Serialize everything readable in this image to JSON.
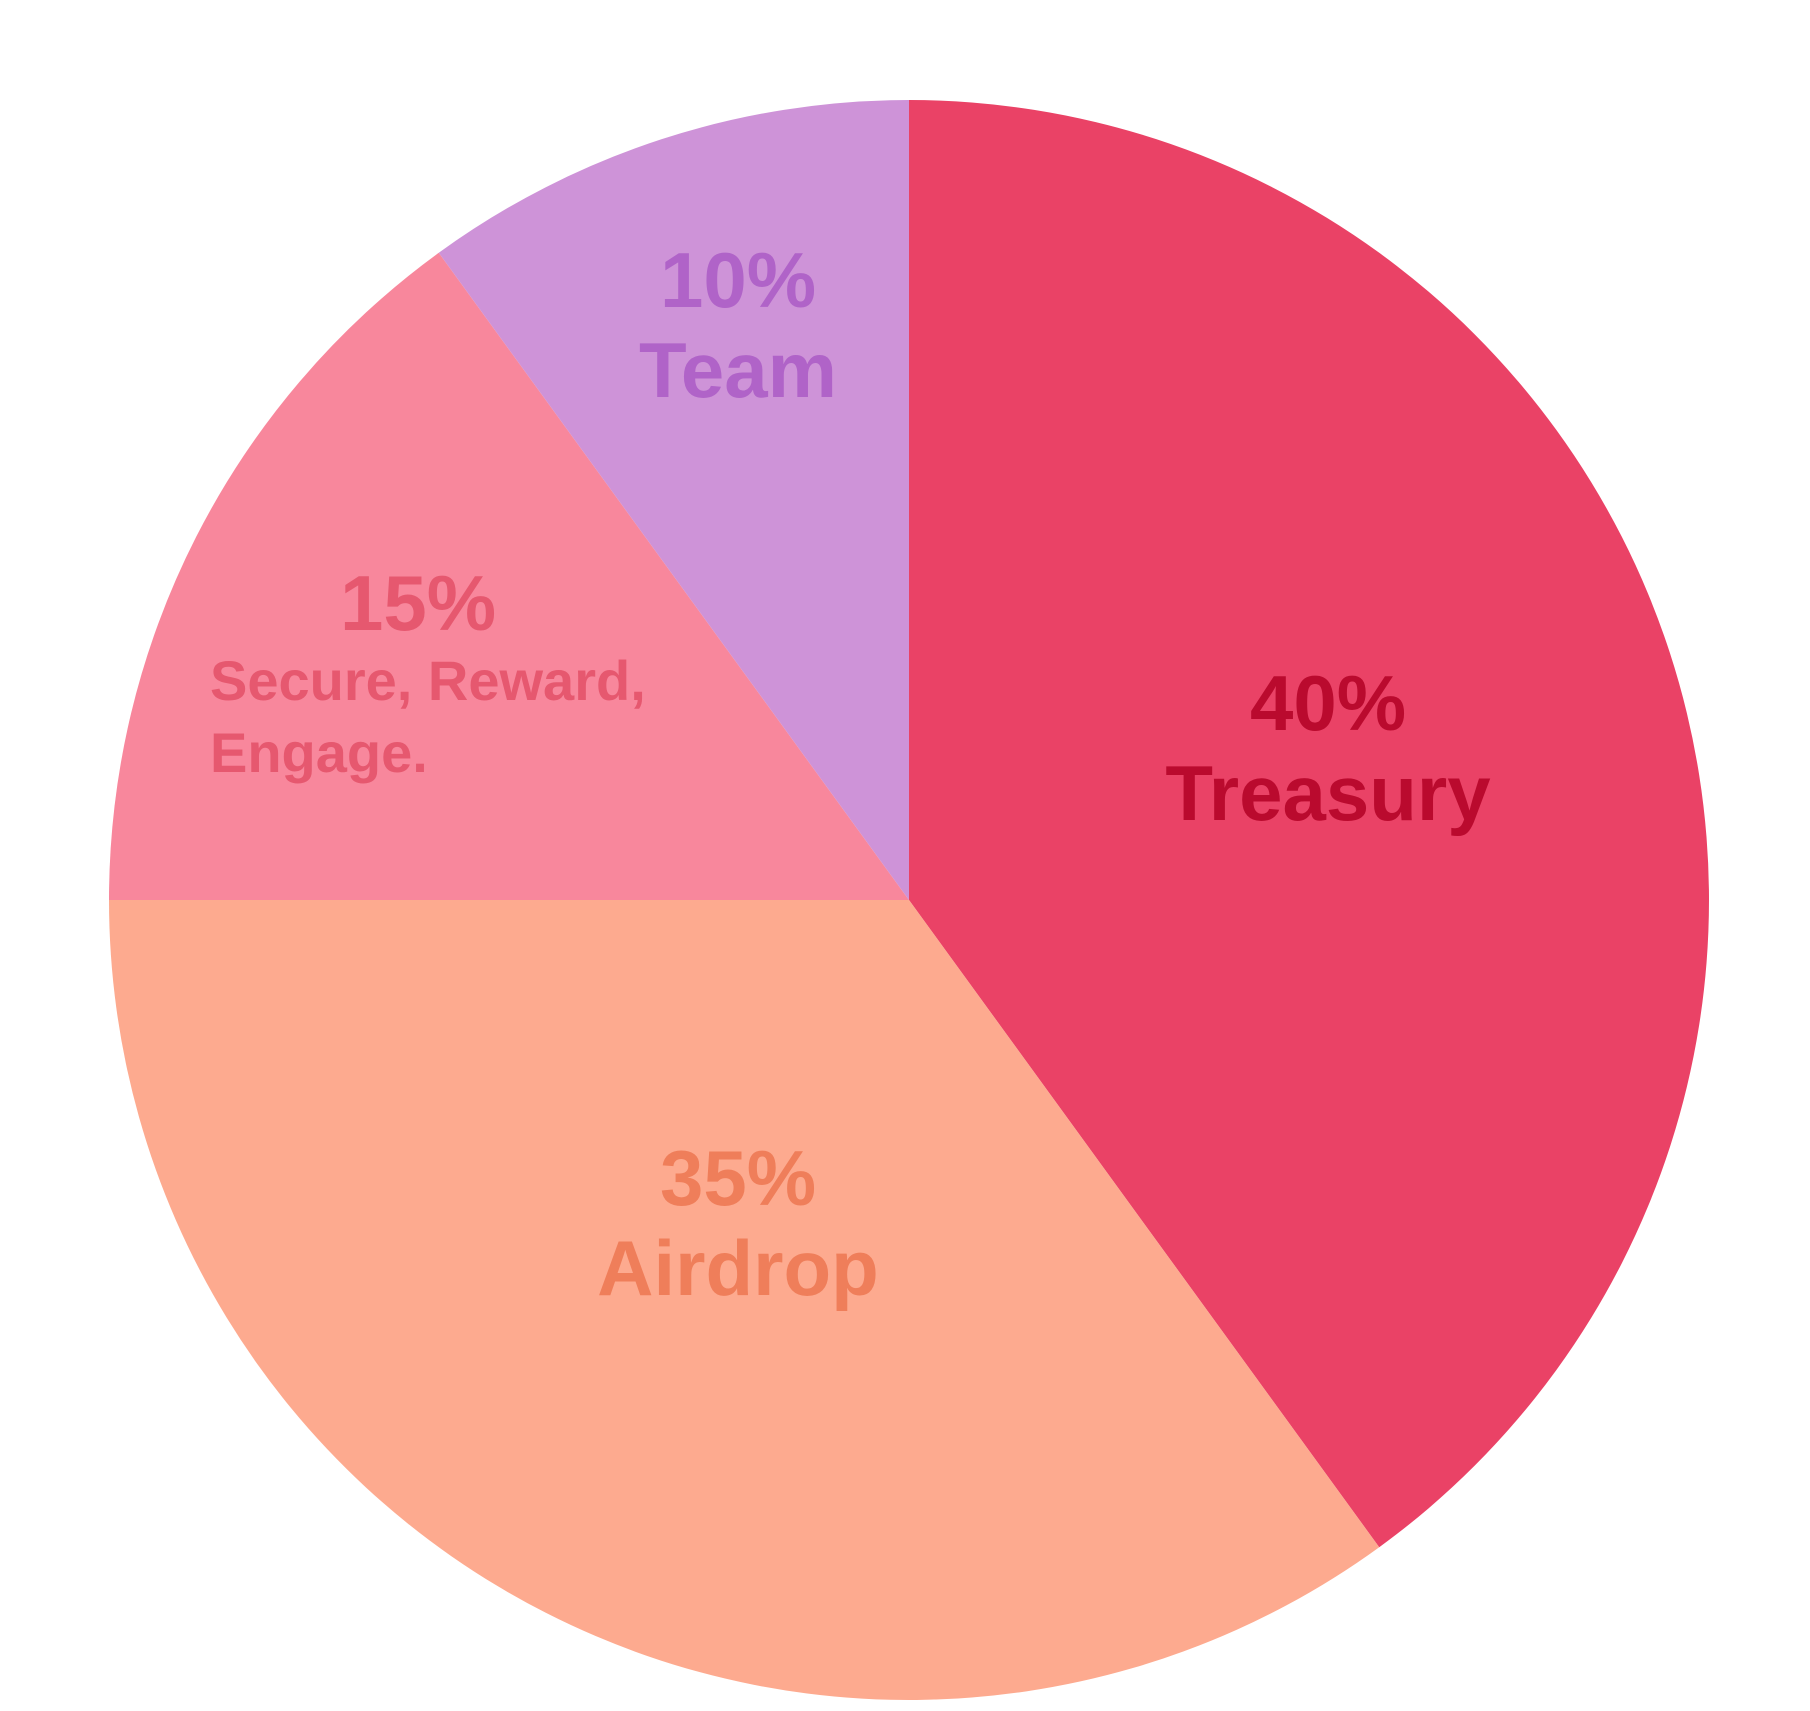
{
  "chart_data": {
    "type": "pie",
    "title": "",
    "start_angle_deg": 0,
    "direction": "clockwise",
    "slices": [
      {
        "value": 40,
        "percent_label": "40%",
        "label_lines": [
          "Treasury"
        ],
        "color": "#EA4266",
        "text_color": "#BA0A2E"
      },
      {
        "value": 35,
        "percent_label": "35%",
        "label_lines": [
          "Airdrop"
        ],
        "color": "#FDAA8F",
        "text_color": "#EF7E5A"
      },
      {
        "value": 15,
        "percent_label": "15%",
        "label_lines": [
          "Secure, Reward,",
          "Engage."
        ],
        "color": "#F8879C",
        "text_color": "#E6586F"
      },
      {
        "value": 10,
        "percent_label": "10%",
        "label_lines": [
          "Team"
        ],
        "color": "#CE93D8",
        "text_color": "#B063C8"
      }
    ]
  }
}
